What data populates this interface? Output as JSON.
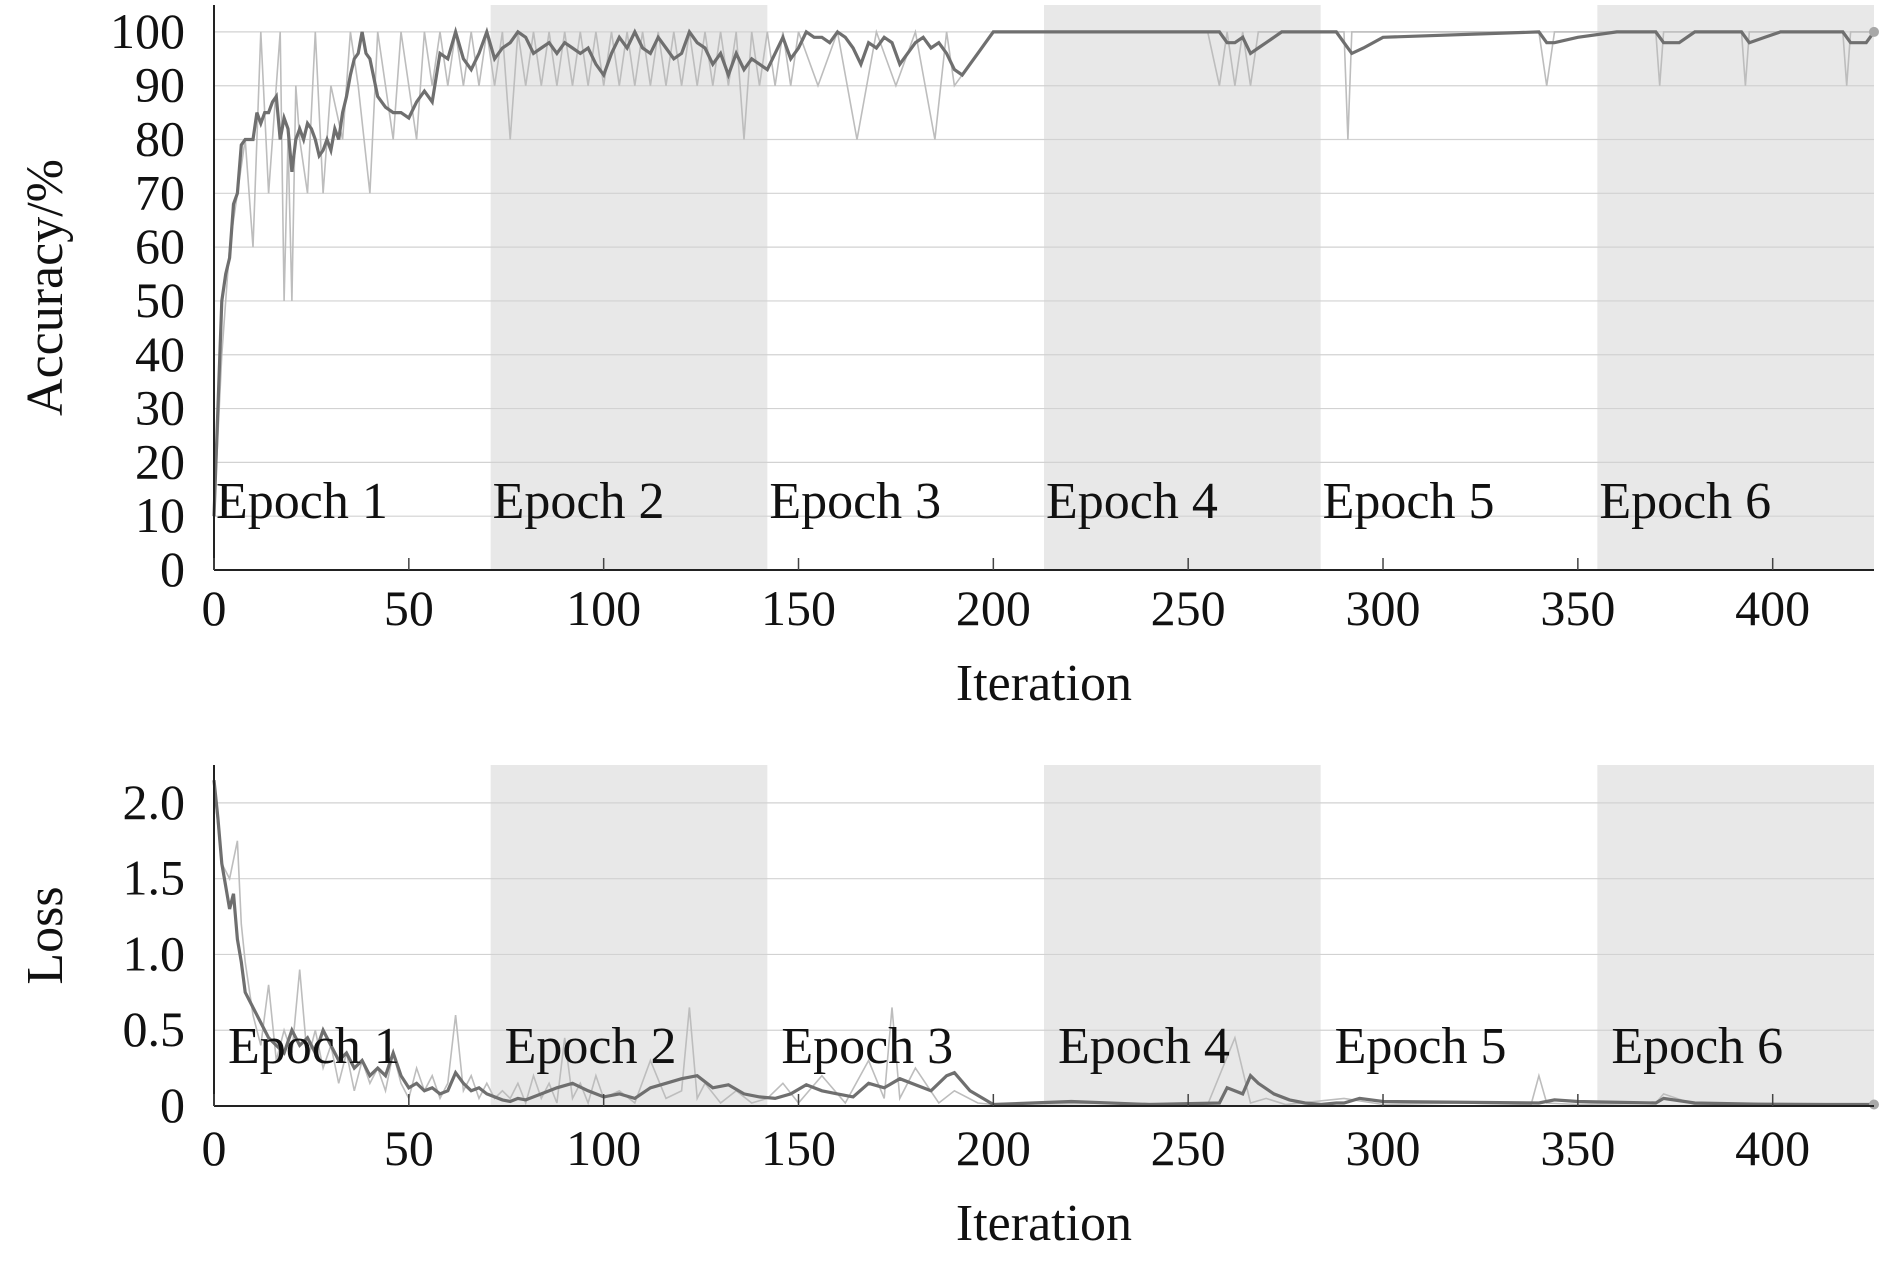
{
  "chart_data": [
    {
      "type": "line",
      "id": "accuracy",
      "title": "",
      "xlabel": "Iteration",
      "ylabel": "Accuracy/%",
      "xlim": [
        0,
        426
      ],
      "ylim": [
        0,
        105
      ],
      "xticks": [
        0,
        50,
        100,
        150,
        200,
        250,
        300,
        350,
        400
      ],
      "yticks": [
        0,
        10,
        20,
        30,
        40,
        50,
        60,
        70,
        80,
        90,
        100
      ],
      "grid": true,
      "epochs": [
        {
          "label": "Epoch 1",
          "start": 0,
          "end": 71,
          "shaded": false
        },
        {
          "label": "Epoch 2",
          "start": 71,
          "end": 142,
          "shaded": true
        },
        {
          "label": "Epoch 3",
          "start": 142,
          "end": 213,
          "shaded": false
        },
        {
          "label": "Epoch 4",
          "start": 213,
          "end": 284,
          "shaded": true
        },
        {
          "label": "Epoch 5",
          "start": 284,
          "end": 355,
          "shaded": false
        },
        {
          "label": "Epoch 6",
          "start": 355,
          "end": 426,
          "shaded": true
        }
      ],
      "series": [
        {
          "role": "raw",
          "color": "#bdbdbd",
          "x": [
            0,
            2,
            4,
            6,
            8,
            10,
            12,
            14,
            16,
            17,
            18,
            19,
            20,
            21,
            22,
            24,
            26,
            28,
            30,
            33,
            35,
            37,
            40,
            42,
            44,
            46,
            48,
            50,
            52,
            54,
            56,
            58,
            60,
            62,
            64,
            66,
            68,
            70,
            72,
            74,
            76,
            78,
            80,
            82,
            84,
            86,
            88,
            90,
            92,
            94,
            96,
            98,
            100,
            102,
            104,
            106,
            108,
            110,
            112,
            114,
            116,
            118,
            120,
            122,
            124,
            126,
            128,
            130,
            132,
            134,
            136,
            138,
            140,
            142,
            144,
            146,
            148,
            150,
            155,
            160,
            165,
            170,
            175,
            180,
            185,
            188,
            190,
            200,
            255,
            258,
            260,
            262,
            264,
            266,
            268,
            280,
            290,
            291,
            292,
            295,
            340,
            342,
            344,
            370,
            371,
            372,
            380,
            392,
            393,
            394,
            400,
            418,
            419,
            420,
            426
          ],
          "y": [
            10,
            40,
            60,
            70,
            80,
            60,
            100,
            70,
            90,
            100,
            50,
            80,
            50,
            90,
            80,
            70,
            100,
            70,
            90,
            80,
            100,
            90,
            70,
            100,
            90,
            80,
            100,
            90,
            80,
            100,
            90,
            100,
            90,
            100,
            90,
            100,
            90,
            100,
            90,
            100,
            80,
            100,
            90,
            100,
            90,
            100,
            90,
            100,
            90,
            100,
            90,
            100,
            90,
            100,
            90,
            100,
            90,
            100,
            90,
            100,
            90,
            100,
            90,
            100,
            90,
            100,
            90,
            100,
            90,
            100,
            80,
            100,
            90,
            100,
            90,
            100,
            90,
            100,
            90,
            100,
            80,
            100,
            90,
            100,
            80,
            100,
            90,
            100,
            100,
            90,
            100,
            90,
            100,
            90,
            100,
            100,
            100,
            80,
            100,
            100,
            100,
            90,
            100,
            100,
            90,
            100,
            100,
            100,
            90,
            100,
            100,
            100,
            90,
            100,
            100
          ]
        },
        {
          "role": "smoothed",
          "color": "#6f6f6f",
          "x": [
            0,
            1,
            2,
            3,
            4,
            5,
            6,
            7,
            8,
            9,
            10,
            11,
            12,
            13,
            14,
            15,
            16,
            17,
            18,
            19,
            20,
            21,
            22,
            23,
            24,
            25,
            26,
            27,
            28,
            29,
            30,
            31,
            32,
            33,
            34,
            35,
            36,
            37,
            38,
            39,
            40,
            42,
            44,
            46,
            48,
            50,
            52,
            54,
            56,
            58,
            60,
            62,
            64,
            66,
            68,
            70,
            72,
            74,
            76,
            78,
            80,
            82,
            84,
            86,
            88,
            90,
            92,
            94,
            96,
            98,
            100,
            102,
            104,
            106,
            108,
            110,
            112,
            114,
            116,
            118,
            120,
            122,
            124,
            126,
            128,
            130,
            132,
            134,
            136,
            138,
            140,
            142,
            144,
            146,
            148,
            150,
            152,
            154,
            156,
            158,
            160,
            162,
            164,
            166,
            168,
            170,
            172,
            174,
            176,
            178,
            180,
            182,
            184,
            186,
            188,
            190,
            192,
            194,
            196,
            198,
            200,
            220,
            240,
            258,
            260,
            262,
            264,
            266,
            268,
            270,
            272,
            274,
            276,
            278,
            280,
            284,
            288,
            290,
            292,
            295,
            300,
            340,
            342,
            344,
            350,
            360,
            370,
            372,
            376,
            380,
            392,
            394,
            398,
            402,
            406,
            418,
            420,
            424,
            426
          ],
          "y": [
            10,
            30,
            50,
            55,
            58,
            68,
            70,
            79,
            80,
            80,
            80,
            85,
            83,
            85,
            85,
            87,
            88,
            80,
            84,
            82,
            74,
            80,
            82,
            80,
            83,
            82,
            80,
            77,
            78,
            80,
            78,
            82,
            80,
            85,
            88,
            92,
            95,
            96,
            100,
            96,
            95,
            88,
            86,
            85,
            85,
            84,
            87,
            89,
            87,
            96,
            95,
            100,
            95,
            93,
            96,
            100,
            95,
            97,
            98,
            100,
            99,
            96,
            97,
            98,
            96,
            98,
            97,
            96,
            97,
            94,
            92,
            96,
            99,
            97,
            100,
            97,
            96,
            99,
            97,
            95,
            96,
            100,
            98,
            97,
            94,
            96,
            92,
            96,
            93,
            95,
            94,
            93,
            96,
            99,
            95,
            97,
            100,
            99,
            99,
            98,
            100,
            99,
            97,
            94,
            98,
            97,
            99,
            98,
            94,
            96,
            98,
            99,
            97,
            98,
            96,
            93,
            92,
            94,
            96,
            98,
            100,
            100,
            100,
            100,
            98,
            98,
            99,
            96,
            97,
            98,
            99,
            100,
            100,
            100,
            100,
            100,
            100,
            98,
            96,
            97,
            99,
            100,
            98,
            98,
            99,
            100,
            100,
            98,
            98,
            100,
            100,
            98,
            99,
            100,
            100,
            100,
            98,
            98,
            100
          ]
        }
      ]
    },
    {
      "type": "line",
      "id": "loss",
      "title": "",
      "xlabel": "Iteration",
      "ylabel": "Loss",
      "xlim": [
        0,
        426
      ],
      "ylim": [
        0,
        2.25
      ],
      "xticks": [
        0,
        50,
        100,
        150,
        200,
        250,
        300,
        350,
        400
      ],
      "yticks": [
        0,
        0.5,
        1.0,
        1.5,
        2.0
      ],
      "ytick_labels": [
        "0",
        "0.5",
        "1.0",
        "1.5",
        "2.0"
      ],
      "grid": true,
      "epochs": [
        {
          "label": "Epoch 1",
          "start": 0,
          "end": 71,
          "shaded": false
        },
        {
          "label": "Epoch 2",
          "start": 71,
          "end": 142,
          "shaded": true
        },
        {
          "label": "Epoch 3",
          "start": 142,
          "end": 213,
          "shaded": false
        },
        {
          "label": "Epoch 4",
          "start": 213,
          "end": 284,
          "shaded": true
        },
        {
          "label": "Epoch 5",
          "start": 284,
          "end": 355,
          "shaded": false
        },
        {
          "label": "Epoch 6",
          "start": 355,
          "end": 426,
          "shaded": true
        }
      ],
      "series": [
        {
          "role": "raw",
          "color": "#c8c8c8",
          "x": [
            0,
            2,
            4,
            6,
            7,
            8,
            10,
            12,
            14,
            16,
            18,
            20,
            22,
            24,
            26,
            28,
            30,
            32,
            34,
            36,
            38,
            40,
            42,
            44,
            46,
            48,
            50,
            52,
            54,
            56,
            58,
            60,
            62,
            64,
            66,
            68,
            70,
            72,
            74,
            76,
            78,
            80,
            82,
            84,
            86,
            88,
            90,
            92,
            94,
            96,
            98,
            100,
            104,
            108,
            112,
            116,
            120,
            122,
            124,
            126,
            130,
            134,
            138,
            142,
            146,
            150,
            156,
            162,
            168,
            172,
            174,
            176,
            180,
            186,
            190,
            196,
            200,
            230,
            255,
            262,
            266,
            270,
            275,
            290,
            300,
            320,
            338,
            340,
            342,
            350,
            370,
            372,
            380,
            400,
            426
          ],
          "y": [
            2.1,
            1.6,
            1.5,
            1.75,
            1.2,
            0.95,
            0.6,
            0.4,
            0.8,
            0.3,
            0.5,
            0.35,
            0.9,
            0.3,
            0.5,
            0.25,
            0.4,
            0.15,
            0.35,
            0.1,
            0.3,
            0.15,
            0.25,
            0.1,
            0.35,
            0.15,
            0.05,
            0.25,
            0.1,
            0.2,
            0.05,
            0.15,
            0.6,
            0.1,
            0.2,
            0.05,
            0.15,
            0.05,
            0.1,
            0.05,
            0.15,
            0.02,
            0.2,
            0.05,
            0.15,
            0.02,
            0.45,
            0.05,
            0.15,
            0.02,
            0.2,
            0.05,
            0.1,
            0.02,
            0.3,
            0.05,
            0.1,
            0.65,
            0.05,
            0.15,
            0.02,
            0.1,
            0.02,
            0.05,
            0.15,
            0.02,
            0.2,
            0.02,
            0.3,
            0.05,
            0.65,
            0.05,
            0.25,
            0.02,
            0.1,
            0.02,
            0.01,
            0.02,
            0.01,
            0.45,
            0.02,
            0.05,
            0.01,
            0.05,
            0.01,
            0.02,
            0.01,
            0.2,
            0.02,
            0.01,
            0.02,
            0.08,
            0.01,
            0.02,
            0.01
          ]
        },
        {
          "role": "smoothed",
          "color": "#6f6f6f",
          "x": [
            0,
            1,
            2,
            3,
            4,
            5,
            6,
            7,
            8,
            9,
            10,
            12,
            14,
            16,
            18,
            20,
            22,
            24,
            26,
            28,
            30,
            32,
            34,
            36,
            38,
            40,
            42,
            44,
            46,
            48,
            50,
            52,
            54,
            56,
            58,
            60,
            62,
            64,
            66,
            68,
            70,
            72,
            74,
            76,
            78,
            80,
            84,
            88,
            92,
            96,
            100,
            104,
            108,
            112,
            116,
            120,
            124,
            128,
            132,
            136,
            140,
            144,
            148,
            152,
            156,
            160,
            164,
            168,
            172,
            176,
            180,
            184,
            188,
            190,
            194,
            198,
            200,
            220,
            240,
            258,
            260,
            264,
            266,
            268,
            272,
            276,
            280,
            284,
            288,
            290,
            294,
            300,
            340,
            344,
            350,
            370,
            372,
            380,
            400,
            426
          ],
          "y": [
            2.15,
            1.9,
            1.6,
            1.45,
            1.3,
            1.4,
            1.1,
            0.95,
            0.75,
            0.7,
            0.65,
            0.55,
            0.45,
            0.4,
            0.35,
            0.5,
            0.4,
            0.45,
            0.35,
            0.5,
            0.4,
            0.3,
            0.35,
            0.25,
            0.3,
            0.2,
            0.25,
            0.2,
            0.35,
            0.2,
            0.12,
            0.15,
            0.1,
            0.12,
            0.08,
            0.1,
            0.22,
            0.15,
            0.1,
            0.12,
            0.08,
            0.06,
            0.04,
            0.03,
            0.05,
            0.04,
            0.08,
            0.12,
            0.15,
            0.1,
            0.06,
            0.08,
            0.05,
            0.12,
            0.15,
            0.18,
            0.2,
            0.12,
            0.14,
            0.08,
            0.06,
            0.05,
            0.08,
            0.14,
            0.1,
            0.08,
            0.06,
            0.15,
            0.12,
            0.18,
            0.14,
            0.1,
            0.2,
            0.22,
            0.1,
            0.04,
            0.01,
            0.03,
            0.01,
            0.02,
            0.12,
            0.08,
            0.2,
            0.15,
            0.08,
            0.04,
            0.02,
            0.01,
            0.02,
            0.02,
            0.05,
            0.03,
            0.02,
            0.04,
            0.03,
            0.02,
            0.05,
            0.02,
            0.01,
            0.01
          ]
        }
      ]
    }
  ]
}
